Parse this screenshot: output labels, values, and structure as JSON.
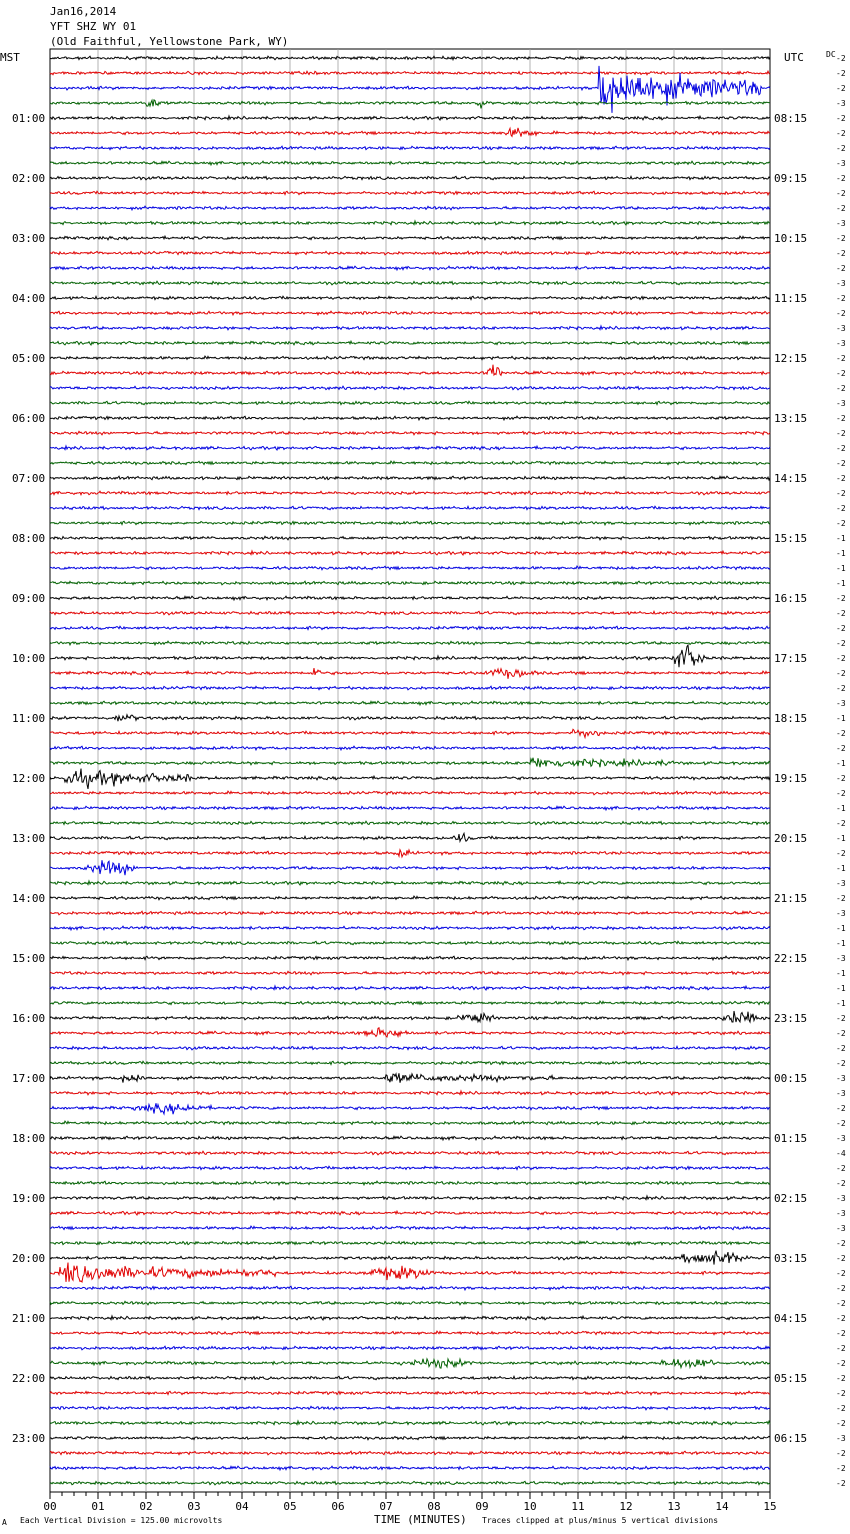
{
  "header": {
    "date": "Jan16,2014",
    "station": "YFT SHZ WY 01",
    "location": "(Old Faithful, Yellowstone Park, WY)",
    "left_tz": "MST",
    "right_tz": "UTC",
    "right_corner": "DC"
  },
  "footer": {
    "left_mark": "A",
    "scale_note": "Each Vertical Division =  125.00 microvolts",
    "xlabel": "TIME (MINUTES)",
    "clip_note": "Traces clipped at plus/minus 5 vertical divisions"
  },
  "chart_data": {
    "type": "line",
    "title": "YFT SHZ WY 01",
    "xlabel": "TIME (MINUTES)",
    "xlim": [
      0,
      15
    ],
    "x_ticks": [
      "00",
      "01",
      "02",
      "03",
      "04",
      "05",
      "06",
      "07",
      "08",
      "09",
      "10",
      "11",
      "12",
      "13",
      "14",
      "15"
    ],
    "rows_per_hour": 4,
    "row_count": 96,
    "trace_colors": [
      "#000000",
      "#e00000",
      "#0000e0",
      "#006000"
    ],
    "left_hour_labels": [
      "01:00",
      "02:00",
      "03:00",
      "04:00",
      "05:00",
      "06:00",
      "07:00",
      "08:00",
      "09:00",
      "10:00",
      "11:00",
      "12:00",
      "13:00",
      "14:00",
      "15:00",
      "16:00",
      "17:00",
      "18:00",
      "19:00",
      "20:00",
      "21:00",
      "22:00",
      "23:00"
    ],
    "right_hour_labels": [
      "08:15",
      "09:15",
      "10:15",
      "11:15",
      "12:15",
      "13:15",
      "14:15",
      "15:15",
      "16:15",
      "17:15",
      "18:15",
      "19:15",
      "20:15",
      "21:15",
      "22:15",
      "23:15",
      "00:15",
      "01:15",
      "02:15",
      "03:15",
      "04:15",
      "05:15",
      "06:15"
    ],
    "row_offsets": [
      "-2",
      "-2",
      "-2",
      "-3",
      "-2",
      "-2",
      "-2",
      "-3",
      "-2",
      "-2",
      "-2",
      "-3",
      "-2",
      "-2",
      "-2",
      "-3",
      "-2",
      "-2",
      "-3",
      "-3",
      "-2",
      "-2",
      "-2",
      "-3",
      "-2",
      "-2",
      "-2",
      "-2",
      "-2",
      "-2",
      "-2",
      "-2",
      "-1",
      "-1",
      "-1",
      "-1",
      "-2",
      "-2",
      "-2",
      "-2",
      "-2",
      "-2",
      "-2",
      "-3",
      "-1",
      "-2",
      "-2",
      "-1",
      "-2",
      "-2",
      "-1",
      "-2",
      "-1",
      "-2",
      "-1",
      "-3",
      "-2",
      "-3",
      "-1",
      "-1",
      "-3",
      "-1",
      "-1",
      "-1",
      "-2",
      "-2",
      "-2",
      "-2",
      "-3",
      "-3",
      "-2",
      "-2",
      "-3",
      "-4",
      "-2",
      "-2",
      "-3",
      "-3",
      "-3",
      "-2",
      "-2",
      "-2",
      "-2",
      "-2",
      "-2",
      "-2",
      "-2",
      "-2",
      "-2",
      "-2",
      "-2",
      "-2",
      "-3",
      "-2",
      "-2",
      "-2"
    ],
    "events": [
      {
        "row": 2,
        "minute": 11.4,
        "duration": 3.4,
        "amplitude": 5
      },
      {
        "row": 3,
        "minute": 1.9,
        "duration": 0.5,
        "amplitude": 1.2
      },
      {
        "row": 3,
        "minute": 8.8,
        "duration": 0.4,
        "amplitude": 0.9
      },
      {
        "row": 5,
        "minute": 9.4,
        "duration": 1.0,
        "amplitude": 0.9
      },
      {
        "row": 21,
        "minute": 9.1,
        "duration": 0.4,
        "amplitude": 2.5
      },
      {
        "row": 40,
        "minute": 12.9,
        "duration": 1.0,
        "amplitude": 2.5
      },
      {
        "row": 41,
        "minute": 5.4,
        "duration": 0.3,
        "amplitude": 1.5
      },
      {
        "row": 41,
        "minute": 9.0,
        "duration": 1.5,
        "amplitude": 0.8
      },
      {
        "row": 44,
        "minute": 1.3,
        "duration": 0.7,
        "amplitude": 0.8
      },
      {
        "row": 45,
        "minute": 10.8,
        "duration": 0.9,
        "amplitude": 0.9
      },
      {
        "row": 47,
        "minute": 10.0,
        "duration": 3.0,
        "amplitude": 1.0
      },
      {
        "row": 48,
        "minute": 0.3,
        "duration": 2.7,
        "amplitude": 1.8
      },
      {
        "row": 52,
        "minute": 8.4,
        "duration": 0.5,
        "amplitude": 0.8
      },
      {
        "row": 53,
        "minute": 7.2,
        "duration": 0.5,
        "amplitude": 0.7
      },
      {
        "row": 54,
        "minute": 0.7,
        "duration": 1.5,
        "amplitude": 1.3
      },
      {
        "row": 64,
        "minute": 8.5,
        "duration": 1.0,
        "amplitude": 1.0
      },
      {
        "row": 64,
        "minute": 14.0,
        "duration": 1.0,
        "amplitude": 1.3
      },
      {
        "row": 65,
        "minute": 6.5,
        "duration": 1.3,
        "amplitude": 1.0
      },
      {
        "row": 68,
        "minute": 1.4,
        "duration": 0.8,
        "amplitude": 1.0
      },
      {
        "row": 68,
        "minute": 7.0,
        "duration": 3.5,
        "amplitude": 0.8
      },
      {
        "row": 70,
        "minute": 1.7,
        "duration": 2.2,
        "amplitude": 0.8
      },
      {
        "row": 80,
        "minute": 13.1,
        "duration": 1.9,
        "amplitude": 1.5
      },
      {
        "row": 81,
        "minute": 0.2,
        "duration": 4.5,
        "amplitude": 1.8
      },
      {
        "row": 81,
        "minute": 6.5,
        "duration": 2.0,
        "amplitude": 1.2
      },
      {
        "row": 87,
        "minute": 7.3,
        "duration": 2.0,
        "amplitude": 0.8
      },
      {
        "row": 87,
        "minute": 12.7,
        "duration": 1.6,
        "amplitude": 1.0
      }
    ]
  }
}
